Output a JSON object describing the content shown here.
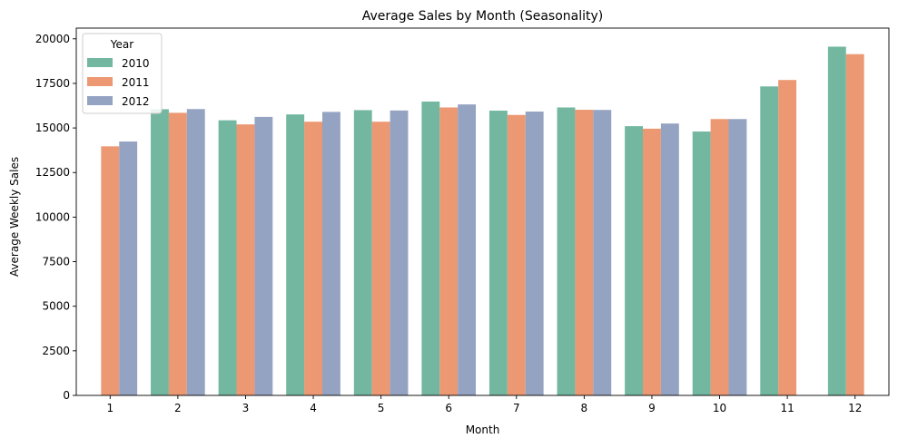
{
  "chart_data": {
    "type": "bar",
    "title": "Average Sales by Month (Seasonality)",
    "xlabel": "Month",
    "ylabel": "Average Weekly Sales",
    "categories": [
      "1",
      "2",
      "3",
      "4",
      "5",
      "6",
      "7",
      "8",
      "9",
      "10",
      "11",
      "12"
    ],
    "series": [
      {
        "name": "2010",
        "color": "#73b7a1",
        "values": [
          null,
          16050,
          15430,
          15760,
          16000,
          16480,
          15970,
          16150,
          15100,
          14800,
          17330,
          19560
        ]
      },
      {
        "name": "2011",
        "color": "#eb9873",
        "values": [
          13970,
          15850,
          15200,
          15350,
          15350,
          16150,
          15730,
          16020,
          14960,
          15500,
          17690,
          19140
        ]
      },
      {
        "name": "2012",
        "color": "#95a3c2",
        "values": [
          14240,
          16060,
          15620,
          15900,
          15980,
          16320,
          15920,
          16010,
          15250,
          15500,
          null,
          null
        ]
      }
    ],
    "ylim": [
      0,
      20600
    ],
    "yticks": [
      0,
      2500,
      5000,
      7500,
      10000,
      12500,
      15000,
      17500,
      20000
    ],
    "grid": false,
    "legend": {
      "title": "Year",
      "placement": "top-left"
    }
  }
}
